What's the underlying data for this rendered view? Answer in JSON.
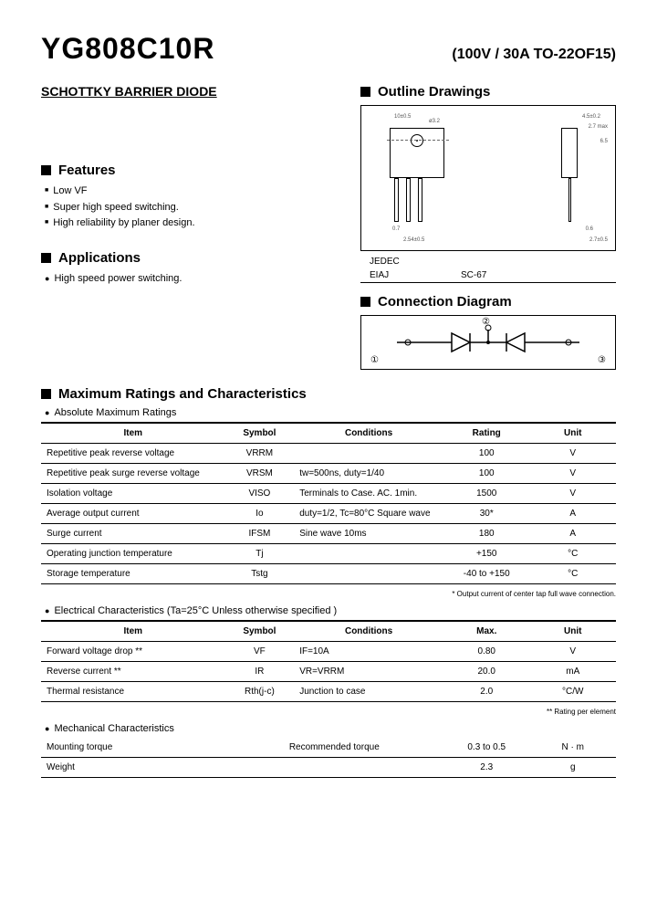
{
  "header": {
    "part_number": "YG808C10R",
    "spec": "(100V / 30A  TO-22OF15)"
  },
  "subtitle": "SCHOTTKY BARRIER DIODE",
  "sections": {
    "features_title": "Features",
    "features": [
      "Low VF",
      "Super high speed switching.",
      "High reliability by planer design."
    ],
    "applications_title": "Applications",
    "applications": [
      "High speed power switching."
    ],
    "outline_title": "Outline  Drawings",
    "connection_title": "Connection Diagram",
    "max_ratings_title": "Maximum Ratings and Characteristics",
    "abs_max_sub": "Absolute Maximum Ratings",
    "elec_sub": "Electrical  Characteristics  (Ta=25°C  Unless  otherwise  specified )",
    "mech_sub": "Mechanical   Characteristics"
  },
  "standards": {
    "jedec_label": "JEDEC",
    "jedec_value": "",
    "eiaj_label": "EIAJ",
    "eiaj_value": "SC-67"
  },
  "table_headers": {
    "item": "Item",
    "symbol": "Symbol",
    "conditions": "Conditions",
    "rating": "Rating",
    "max": "Max.",
    "unit": "Unit"
  },
  "abs_max_rows": [
    {
      "item": "Repetitive peak reverse voltage",
      "symbol": "VRRM",
      "conditions": "",
      "rating": "100",
      "unit": "V"
    },
    {
      "item": "Repetitive peak surge reverse voltage",
      "symbol": "VRSM",
      "conditions": "tw=500ns, duty=1/40",
      "rating": "100",
      "unit": "V"
    },
    {
      "item": "Isolation voltage",
      "symbol": "VISO",
      "conditions": "Terminals to Case. AC. 1min.",
      "rating": "1500",
      "unit": "V"
    },
    {
      "item": "Average output current",
      "symbol": "Io",
      "conditions": "duty=1/2, Tc=80°C Square  wave",
      "rating": "30*",
      "unit": "A"
    },
    {
      "item": "Surge current",
      "symbol": "IFSM",
      "conditions": "Sine  wave  10ms",
      "rating": "180",
      "unit": "A"
    },
    {
      "item": "Operating junction temperature",
      "symbol": "Tj",
      "conditions": "",
      "rating": "+150",
      "unit": "°C"
    },
    {
      "item": "Storage temperature",
      "symbol": "Tstg",
      "conditions": "",
      "rating": "-40  to  +150",
      "unit": "°C"
    }
  ],
  "abs_note": "*  Output current of center tap full wave connection.",
  "elec_rows": [
    {
      "item": "Forward voltage drop  **",
      "symbol": "VF",
      "conditions": "IF=10A",
      "rating": "0.80",
      "unit": "V"
    },
    {
      "item": "Reverse current  **",
      "symbol": "IR",
      "conditions": "VR=VRRM",
      "rating": "20.0",
      "unit": "mA"
    },
    {
      "item": "Thermal resistance",
      "symbol": "Rth(j-c)",
      "conditions": "Junction to case",
      "rating": "2.0",
      "unit": "°C/W"
    }
  ],
  "elec_note": "**  Rating per element",
  "mech_rows": [
    {
      "item": "Mounting torque",
      "conditions": "Recommended torque",
      "rating": "0.3  to  0.5",
      "unit": "N · m"
    },
    {
      "item": "Weight",
      "conditions": "",
      "rating": "2.3",
      "unit": "g"
    }
  ],
  "conn_pins": {
    "p1": "①",
    "p2": "②",
    "p3": "③"
  },
  "drawing_dims": {
    "d1": "10±0.5",
    "d2": "ø3.2",
    "d3": "4.5±0.2",
    "d4": "2.7 max",
    "d5": "0.7",
    "d6": "2.54±0.5",
    "d7": "0.6",
    "d8": "2.7±0.5",
    "d9": "6.5"
  }
}
